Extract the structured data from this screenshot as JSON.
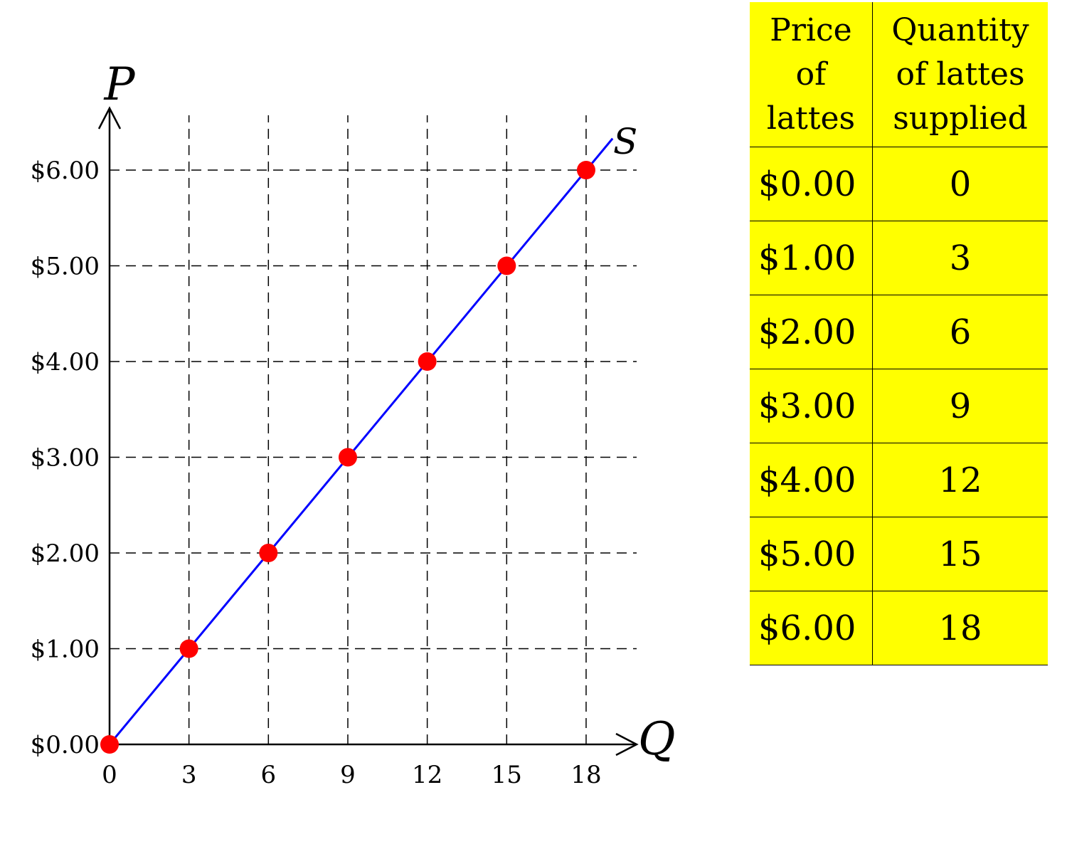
{
  "chart_data": {
    "type": "line",
    "xlabel": "Q",
    "ylabel": "P",
    "curve_label": "S",
    "x_ticks": [
      0,
      3,
      6,
      9,
      12,
      15,
      18
    ],
    "y_ticks": [
      0,
      1,
      2,
      3,
      4,
      5,
      6
    ],
    "y_tick_labels": [
      "$0.00",
      "$1.00",
      "$2.00",
      "$3.00",
      "$4.00",
      "$5.00",
      "$6.00"
    ],
    "xlim": [
      0,
      20
    ],
    "ylim": [
      0,
      6.8
    ],
    "grid": "dashed",
    "series": [
      {
        "name": "S",
        "color": "#0000ff",
        "marker_color": "#ff0000",
        "points": [
          {
            "x": 0,
            "y": 0
          },
          {
            "x": 3,
            "y": 1
          },
          {
            "x": 6,
            "y": 2
          },
          {
            "x": 9,
            "y": 3
          },
          {
            "x": 12,
            "y": 4
          },
          {
            "x": 15,
            "y": 5
          },
          {
            "x": 18,
            "y": 6
          }
        ],
        "line_extends_to": {
          "x": 19,
          "y": 6.33
        }
      }
    ]
  },
  "table": {
    "background": "#ffff00",
    "headers": [
      "Price of lattes",
      "Quantity of lattes supplied"
    ],
    "header_lines": [
      [
        "Price",
        "of",
        "lattes"
      ],
      [
        "Quantity",
        "of lattes",
        "supplied"
      ]
    ],
    "rows": [
      [
        "$0.00",
        "0"
      ],
      [
        "$1.00",
        "3"
      ],
      [
        "$2.00",
        "6"
      ],
      [
        "$3.00",
        "9"
      ],
      [
        "$4.00",
        "12"
      ],
      [
        "$5.00",
        "15"
      ],
      [
        "$6.00",
        "18"
      ]
    ]
  }
}
